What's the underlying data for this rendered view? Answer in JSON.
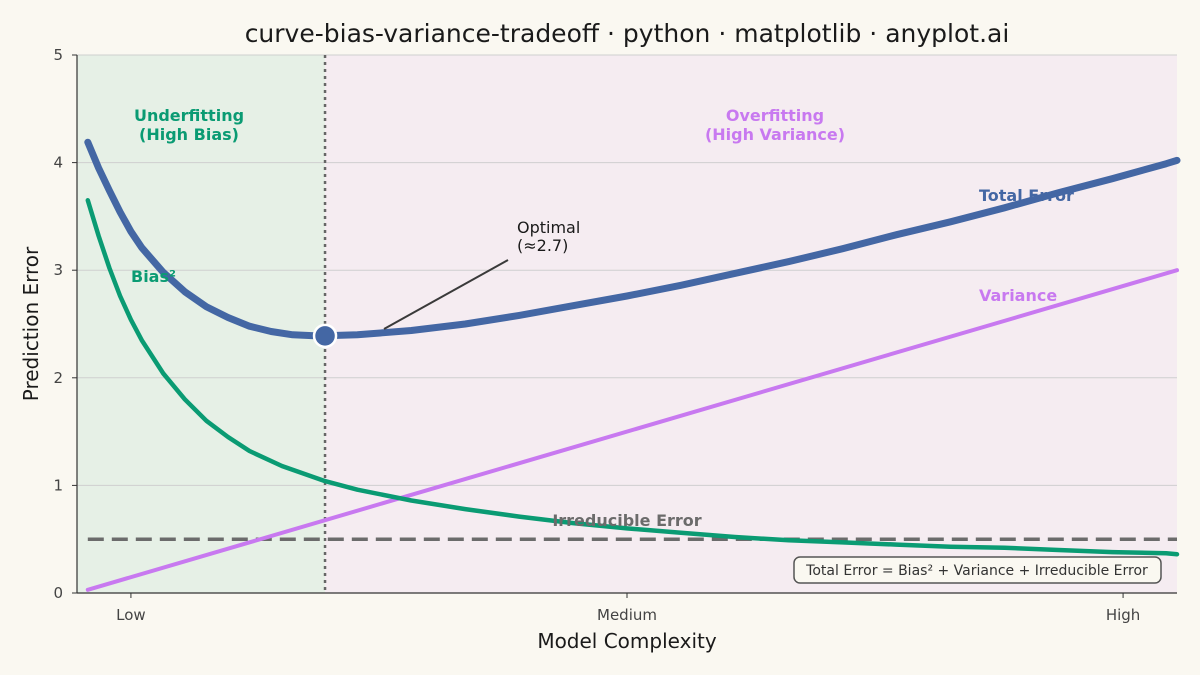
{
  "title": "curve-bias-variance-tradeoff · python · matplotlib · anyplot.ai",
  "chart_data": {
    "type": "line",
    "title": "curve-bias-variance-tradeoff · python · matplotlib · anyplot.ai",
    "xlabel": "Model Complexity",
    "ylabel": "Prediction Error",
    "xlim": [
      0.4,
      10.6
    ],
    "ylim": [
      0,
      5
    ],
    "yticks": [
      0,
      1,
      2,
      3,
      4,
      5
    ],
    "xticks": [
      {
        "value": 0.9,
        "label": "Low"
      },
      {
        "value": 5.5,
        "label": "Medium"
      },
      {
        "value": 10.1,
        "label": "High"
      }
    ],
    "grid": "horizontal",
    "optimal_x": 2.7,
    "regions": [
      {
        "label_line1": "Underfitting",
        "label_line2": "(High Bias)",
        "x_from": 0.4,
        "x_to": 2.7,
        "color": "#e6f0e6"
      },
      {
        "label_line1": "Overfitting",
        "label_line2": "(High Variance)",
        "x_from": 2.7,
        "x_to": 10.6,
        "color": "#f5ecf1"
      }
    ],
    "series": [
      {
        "name": "Total Error",
        "color": "#4467a4",
        "x": [
          0.5,
          0.6,
          0.7,
          0.8,
          0.9,
          1.0,
          1.2,
          1.4,
          1.6,
          1.8,
          2.0,
          2.2,
          2.4,
          2.6,
          2.7,
          3.0,
          3.5,
          4.0,
          4.5,
          5.0,
          5.5,
          6.0,
          6.5,
          7.0,
          7.5,
          8.0,
          8.5,
          9.0,
          9.5,
          10.0,
          10.5,
          10.6
        ],
        "y": [
          4.19,
          3.95,
          3.74,
          3.54,
          3.36,
          3.21,
          2.98,
          2.8,
          2.66,
          2.56,
          2.48,
          2.43,
          2.4,
          2.39,
          2.39,
          2.4,
          2.44,
          2.5,
          2.58,
          2.67,
          2.76,
          2.86,
          2.97,
          3.08,
          3.2,
          3.33,
          3.45,
          3.58,
          3.72,
          3.85,
          3.99,
          4.02
        ]
      },
      {
        "name": "Bias²",
        "color": "#0a9b73",
        "x": [
          0.5,
          0.6,
          0.7,
          0.8,
          0.9,
          1.0,
          1.2,
          1.4,
          1.6,
          1.8,
          2.0,
          2.3,
          2.7,
          3.0,
          3.5,
          4.0,
          4.5,
          5.0,
          5.5,
          6.0,
          6.5,
          7.0,
          7.5,
          8.0,
          8.5,
          9.0,
          9.5,
          10.0,
          10.5,
          10.6
        ],
        "y": [
          3.65,
          3.32,
          3.02,
          2.76,
          2.54,
          2.35,
          2.04,
          1.8,
          1.6,
          1.45,
          1.32,
          1.18,
          1.04,
          0.96,
          0.86,
          0.78,
          0.71,
          0.65,
          0.6,
          0.56,
          0.52,
          0.49,
          0.47,
          0.45,
          0.43,
          0.42,
          0.4,
          0.38,
          0.37,
          0.36
        ]
      },
      {
        "name": "Variance",
        "color": "#c879f0",
        "x": [
          0.5,
          10.6
        ],
        "y": [
          0.03,
          3.0
        ]
      },
      {
        "name": "Irreducible Error",
        "color": "#6b6b6b",
        "x": [
          0.5,
          10.6
        ],
        "y": [
          0.5,
          0.5
        ]
      }
    ],
    "optimal_point": {
      "x": 2.7,
      "y": 2.39,
      "label_line1": "Optimal",
      "label_line2": "(≈2.7)"
    },
    "formula": "Total Error = Bias² + Variance + Irreducible Error"
  }
}
